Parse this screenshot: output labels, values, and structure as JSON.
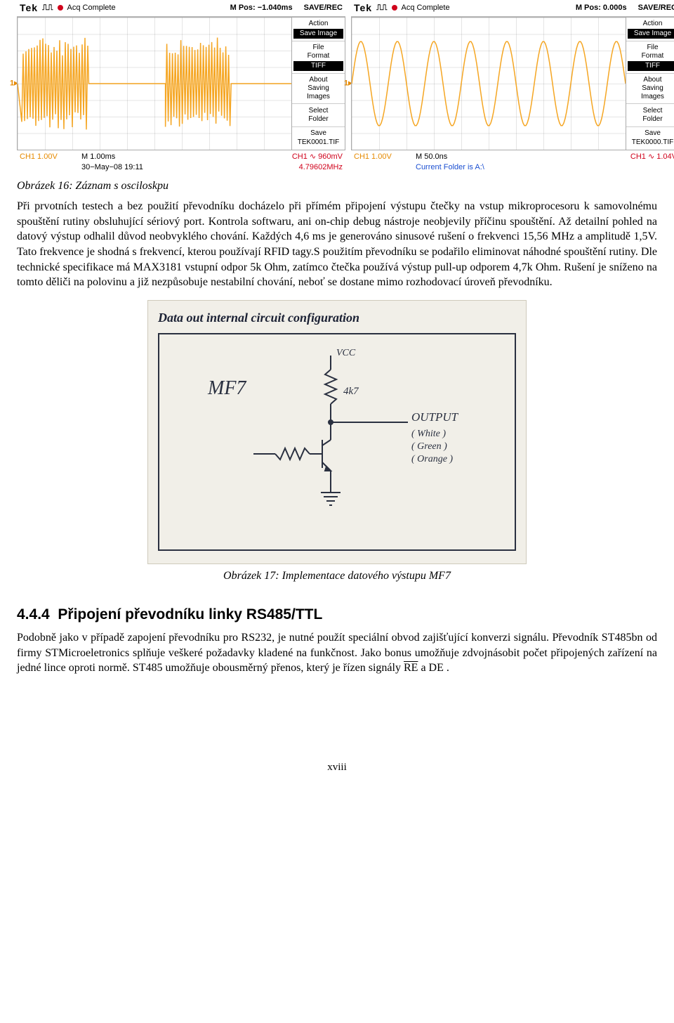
{
  "scopes": [
    {
      "brand": "Tek",
      "acq_color": "#d0021b",
      "acq": "Acq Complete",
      "mpos_label": "M Pos:",
      "mpos": "−1.040ms",
      "top_right": "SAVE/REC",
      "ch1_marker": "1",
      "ch1_marker_color": "#e68a00",
      "wave_color": "#f5a623",
      "wave_type": "burst",
      "menu": [
        {
          "label": "Action",
          "value": "Save Image",
          "inverse": true
        },
        {
          "label": "File\nFormat",
          "value": "TIFF",
          "inverse": true
        },
        {
          "label": "About\nSaving\nImages",
          "value": "",
          "inverse": false
        },
        {
          "label": "Select\nFolder",
          "value": "",
          "inverse": false
        },
        {
          "label": "Save",
          "value": "TEK0001.TIF",
          "inverse": false
        }
      ],
      "bottom": {
        "ch1_color": "#e68a00",
        "ch1_left": "CH1  1.00V",
        "mid_top": "M 1.00ms",
        "mid_bot": "30−May−08 19:11",
        "right_top_color": "#d0021b",
        "right_top": "CH1 ∿ 960mV",
        "right_bot_color": "#d0021b",
        "right_bot": "4.79602MHz"
      }
    },
    {
      "brand": "Tek",
      "acq_color": "#d0021b",
      "acq": "Acq Complete",
      "mpos_label": "M Pos:",
      "mpos": "0.000s",
      "top_right": "SAVE/REC",
      "ch1_marker": "1",
      "ch1_marker_color": "#e68a00",
      "wave_color": "#f5a623",
      "wave_type": "sine",
      "menu": [
        {
          "label": "Action",
          "value": "Save Image",
          "inverse": true
        },
        {
          "label": "File\nFormat",
          "value": "TIFF",
          "inverse": true
        },
        {
          "label": "About\nSaving\nImages",
          "value": "",
          "inverse": false
        },
        {
          "label": "Select\nFolder",
          "value": "",
          "inverse": false
        },
        {
          "label": "Save",
          "value": "TEK0000.TIF",
          "inverse": false
        }
      ],
      "bottom": {
        "ch1_color": "#e68a00",
        "ch1_left": "CH1  1.00V",
        "mid_top": "M 50.0ns",
        "mid_bot": "Current Folder is A:\\",
        "mid_bot_color": "#1b4fd1",
        "right_top_color": "#d0021b",
        "right_top": "CH1 ∿ 1.04V",
        "right_bot_color": "",
        "right_bot": ""
      }
    }
  ],
  "caption1": "Obrázek 16: Záznam s osciloskpu",
  "para1": "Při prvotních testech a bez použití převodníku docházelo při přímém připojení výstupu čtečky na vstup mikroprocesoru k samovolnému spouštění rutiny obsluhující sériový port. Kontrola softwaru, ani on-chip debug nástroje neobjevily příčinu spouštění. Až detailní pohled na datový výstup odhalil důvod neobvyklého chování. Každých 4,6 ms je generováno sinusové rušení o frekvenci 15,56 MHz a amplitudě 1,5V. Tato frekvence je shodná s frekvencí, kterou používají RFID tagy.S použitím převodníku se podařilo eliminovat náhodné spouštění rutiny. Dle technické specifikace má MAX3181 vstupní odpor 5k Ohm, zatímco čtečka používá výstup pull-up odporem 4,7k Ohm. Rušení je sníženo na tomto děliči na polovinu a již nezpůsobuje nestabilní chování, neboť se dostane mimo rozhodovací úroveň převodníku.",
  "circuit": {
    "title": "Data out internal circuit configuration",
    "label_mf7": "MF7",
    "label_vcc": "VCC",
    "label_4k7": "4k7",
    "label_output": "OUTPUT",
    "colors": [
      "( White  )",
      "( Green  )",
      "( Orange )"
    ],
    "line_color": "#2a3040",
    "bg_color": "#f1efe8"
  },
  "caption2": "Obrázek 17: Implementace datového výstupu MF7",
  "section_num": "4.4.4",
  "section_title": "Připojení převodníku linky RS485/TTL",
  "para2_pre": "Podobně jako v případě zapojení převodníku pro RS232, je nutné použít speciální obvod zajišťující konverzi signálu. Převodník ST485bn od firmy STMicroeletronics splňuje veškeré požadavky kladené na funkčnost. Jako bonus umožňuje zdvojnásobit počet připojených zařízení na jedné lince oproti normě. ST485 umožňuje obousměrný přenos, který je řízen signály ",
  "para2_sig1": "RE",
  "para2_join": " a ",
  "para2_sig2": "DE",
  "para2_post": " .",
  "pagenum": "xviii"
}
